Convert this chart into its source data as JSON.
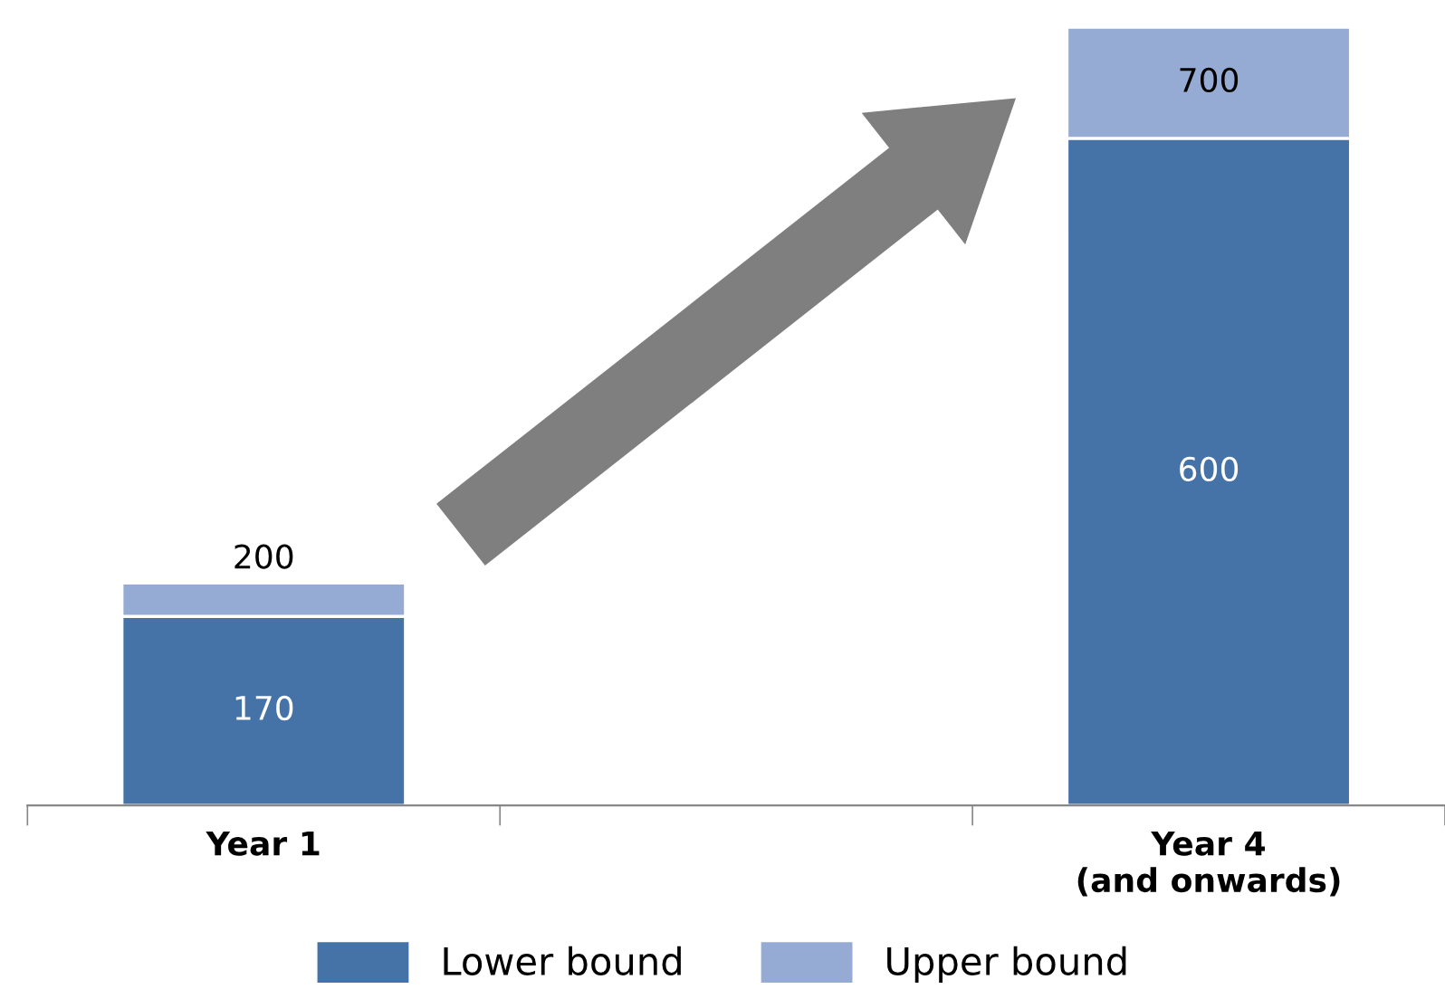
{
  "chart_data": {
    "type": "bar",
    "stacked": true,
    "categories": [
      "Year 1",
      null,
      "Year 4\n(and onwards)"
    ],
    "series": [
      {
        "name": "Lower bound",
        "color": "#4573a7",
        "values": [
          170,
          null,
          600
        ],
        "value_labels": [
          "170",
          null,
          "600"
        ]
      },
      {
        "name": "Upper bound",
        "color": "#95abd3",
        "values": [
          30,
          null,
          100
        ]
      }
    ],
    "totals": [
      "200",
      null,
      "700"
    ],
    "ylim": [
      0,
      700
    ],
    "tick_labels": "x",
    "legend": "bottom",
    "grid": false
  }
}
